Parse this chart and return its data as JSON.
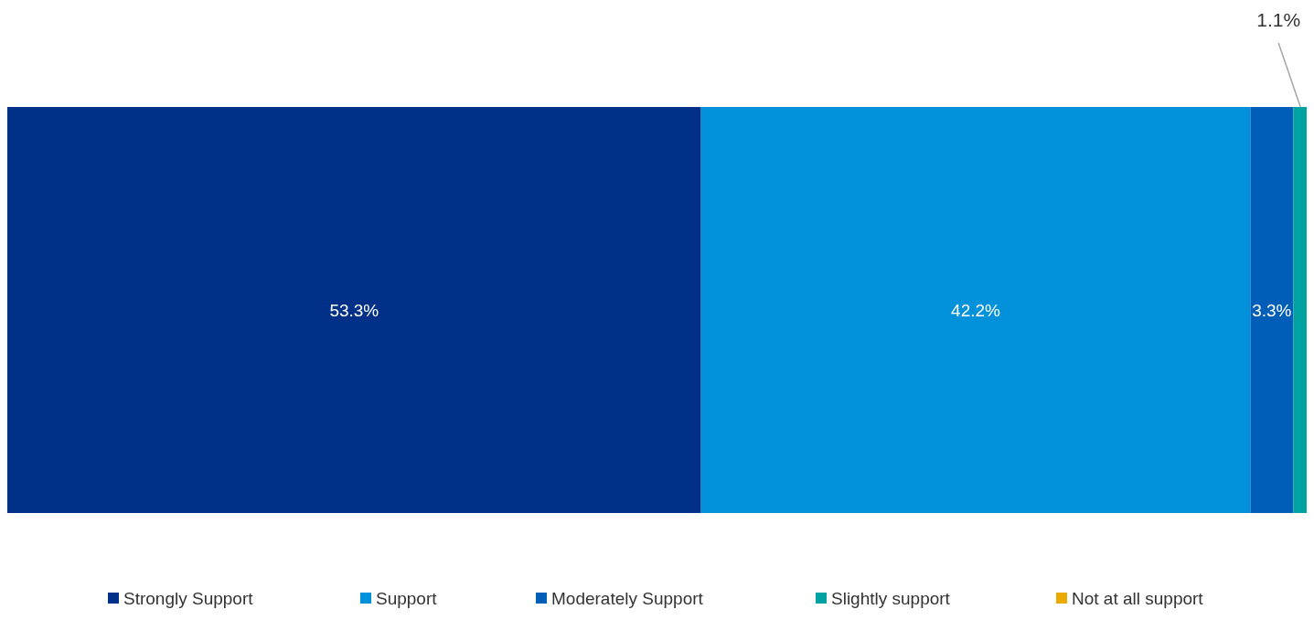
{
  "chart_data": {
    "type": "bar",
    "orientation": "horizontal",
    "stacked": true,
    "categories": [
      null
    ],
    "legend": "bottom",
    "series": [
      {
        "name": "Strongly Support",
        "color": "#003087",
        "values": [
          53.3
        ],
        "value_labels": [
          "53.3%"
        ]
      },
      {
        "name": "Support",
        "color": "#0091da",
        "values": [
          42.2
        ],
        "value_labels": [
          "42.2%"
        ]
      },
      {
        "name": "Moderately Support",
        "color": "#005eb8",
        "values": [
          3.3
        ],
        "value_labels": [
          "3.3%"
        ]
      },
      {
        "name": "Slightly support",
        "color": "#00a3a1",
        "values": [
          1.1
        ],
        "value_labels": [
          "1.1%"
        ]
      },
      {
        "name": "Not at all support",
        "color": "#eaaa00",
        "values": [
          0
        ],
        "value_labels": [
          null
        ]
      }
    ]
  }
}
